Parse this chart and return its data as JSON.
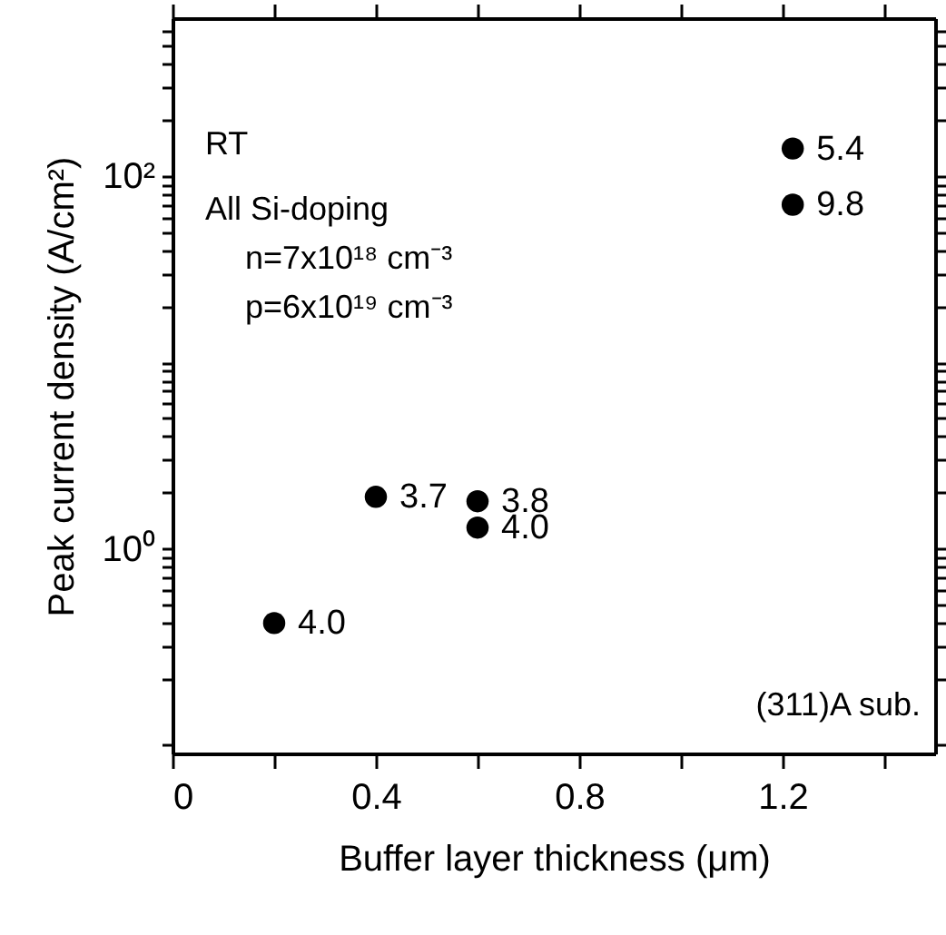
{
  "chart_data": {
    "type": "scatter",
    "xlabel": "Buffer layer thickness (μm)",
    "ylabel": "Peak current density (A/cm²)",
    "x": [
      0.2,
      0.4,
      0.6,
      0.6,
      1.22,
      1.22
    ],
    "series": [
      {
        "color": "#000000",
        "values": [
          0.4,
          1.9,
          1.8,
          1.3,
          140,
          70
        ]
      }
    ],
    "value_labels": [
      "4.0",
      "3.7",
      "3.8",
      "4.0",
      "5.4",
      "9.8"
    ],
    "marker": "circle",
    "log": "y",
    "xlim": [
      0,
      1.5
    ],
    "xticks": [
      0,
      {
        "value": 0.2,
        "label": null
      },
      0.4,
      {
        "value": 0.6,
        "label": null
      },
      0.8,
      {
        "value": 1.0,
        "label": null
      },
      1.2,
      {
        "value": 1.4,
        "label": null
      }
    ],
    "ylim": [
      0.08,
      700
    ],
    "yticks": [
      {
        "value": 0.09,
        "label": null
      },
      {
        "value": 0.2,
        "label": null
      },
      {
        "value": 0.3,
        "label": null
      },
      {
        "value": 0.4,
        "label": null
      },
      {
        "value": 0.5,
        "label": null
      },
      {
        "value": 0.6,
        "label": null
      },
      {
        "value": 0.7,
        "label": null
      },
      {
        "value": 0.8,
        "label": null
      },
      {
        "value": 0.9,
        "label": null
      },
      {
        "value": 1,
        "label": "10⁰"
      },
      {
        "value": 2,
        "label": null
      },
      {
        "value": 3,
        "label": null
      },
      {
        "value": 4,
        "label": null
      },
      {
        "value": 5,
        "label": null
      },
      {
        "value": 6,
        "label": null
      },
      {
        "value": 7,
        "label": null
      },
      {
        "value": 8,
        "label": null
      },
      {
        "value": 9,
        "label": null
      },
      {
        "value": 10,
        "label": null
      },
      {
        "value": 20,
        "label": null
      },
      {
        "value": 30,
        "label": null
      },
      {
        "value": 40,
        "label": null
      },
      {
        "value": 50,
        "label": null
      },
      {
        "value": 60,
        "label": null
      },
      {
        "value": 70,
        "label": null
      },
      {
        "value": 80,
        "label": null
      },
      {
        "value": 90,
        "label": null
      },
      {
        "value": 100,
        "label": "10²"
      },
      {
        "value": 200,
        "label": null
      },
      {
        "value": 300,
        "label": null
      },
      {
        "value": 400,
        "label": null
      },
      {
        "value": 500,
        "label": null
      },
      {
        "value": 600,
        "label": null
      }
    ],
    "grid": false,
    "annotations": [
      "RT",
      "All Si-doping",
      "n=7x10¹⁸ cm⁻³",
      "p=6x10¹⁹ cm⁻³",
      "(311)A sub."
    ]
  }
}
